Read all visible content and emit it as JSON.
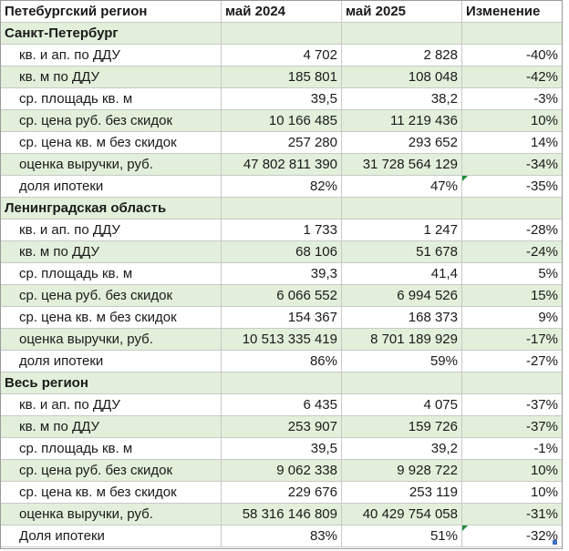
{
  "table": {
    "header": [
      "Петебургский регион",
      "май 2024",
      "май 2025",
      "Изменение"
    ],
    "sections": [
      {
        "title": "Санкт-Петербург",
        "rows": [
          {
            "label": "кв. и ап. по ДДУ",
            "v2024": "4 702",
            "v2025": "2 828",
            "change": "-40%"
          },
          {
            "label": "кв. м по ДДУ",
            "v2024": "185 801",
            "v2025": "108 048",
            "change": "-42%"
          },
          {
            "label": "ср. площадь кв. м",
            "v2024": "39,5",
            "v2025": "38,2",
            "change": "-3%"
          },
          {
            "label": "ср. цена руб. без скидок",
            "v2024": "10 166 485",
            "v2025": "11 219 436",
            "change": "10%"
          },
          {
            "label": "ср. цена кв. м без скидок",
            "v2024": "257 280",
            "v2025": "293 652",
            "change": "14%"
          },
          {
            "label": "оценка выручки, руб.",
            "v2024": "47 802 811 390",
            "v2025": "31 728 564 129",
            "change": "-34%"
          },
          {
            "label": "доля ипотеки",
            "v2024": "82%",
            "v2025": "47%",
            "change": "-35%"
          }
        ]
      },
      {
        "title": "Ленинградская область",
        "rows": [
          {
            "label": "кв. и ап. по ДДУ",
            "v2024": "1 733",
            "v2025": "1 247",
            "change": "-28%"
          },
          {
            "label": "кв. м по ДДУ",
            "v2024": "68 106",
            "v2025": "51 678",
            "change": "-24%"
          },
          {
            "label": "ср. площадь кв. м",
            "v2024": "39,3",
            "v2025": "41,4",
            "change": "5%"
          },
          {
            "label": "ср. цена руб. без скидок",
            "v2024": "6 066 552",
            "v2025": "6 994 526",
            "change": "15%"
          },
          {
            "label": "ср. цена кв. м без скидок",
            "v2024": "154 367",
            "v2025": "168 373",
            "change": "9%"
          },
          {
            "label": "оценка выручки, руб.",
            "v2024": "10 513 335 419",
            "v2025": "8 701 189 929",
            "change": "-17%"
          },
          {
            "label": "доля ипотеки",
            "v2024": "86%",
            "v2025": "59%",
            "change": "-27%"
          }
        ]
      },
      {
        "title": "Весь регион",
        "rows": [
          {
            "label": "кв. и ап. по ДДУ",
            "v2024": "6 435",
            "v2025": "4 075",
            "change": "-37%"
          },
          {
            "label": "кв. м по ДДУ",
            "v2024": "253 907",
            "v2025": "159 726",
            "change": "-37%"
          },
          {
            "label": "ср. площадь кв. м",
            "v2024": "39,5",
            "v2025": "39,2",
            "change": "-1%"
          },
          {
            "label": "ср. цена руб. без скидок",
            "v2024": "9 062 338",
            "v2025": "9 928 722",
            "change": "10%"
          },
          {
            "label": "ср. цена кв. м без скидок",
            "v2024": "229 676",
            "v2025": "253 119",
            "change": "10%"
          },
          {
            "label": "оценка выручки, руб.",
            "v2024": "58 316 146 809",
            "v2025": "40 429 754 058",
            "change": "-31%"
          },
          {
            "label": "Доля ипотеки",
            "v2024": "83%",
            "v2025": "51%",
            "change": "-32%"
          }
        ]
      }
    ]
  },
  "colors": {
    "shade": "#e2efda",
    "grid": "#c9c9c9",
    "flag": "#1d8a3a"
  }
}
